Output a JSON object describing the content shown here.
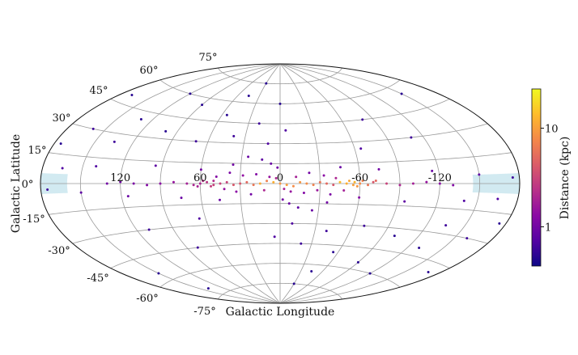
{
  "chart_data": {
    "type": "scatter",
    "projection": "aitoff",
    "xlabel": "Galactic Longitude",
    "ylabel": "Galactic Latitude",
    "lon_ticks": [
      {
        "value": 120,
        "label": "120"
      },
      {
        "value": 60,
        "label": "60"
      },
      {
        "value": 0,
        "label": "0"
      },
      {
        "value": -60,
        "label": "-60"
      },
      {
        "value": -120,
        "label": "-120"
      }
    ],
    "lat_ticks": [
      {
        "value": 75,
        "label": "75°"
      },
      {
        "value": 60,
        "label": "60°"
      },
      {
        "value": 45,
        "label": "45°"
      },
      {
        "value": 30,
        "label": "30°"
      },
      {
        "value": 15,
        "label": "15°"
      },
      {
        "value": 0,
        "label": "0°"
      },
      {
        "value": -15,
        "label": "-15°"
      },
      {
        "value": -30,
        "label": "-30°"
      },
      {
        "value": -45,
        "label": "-45°"
      },
      {
        "value": -60,
        "label": "-60°"
      },
      {
        "value": -75,
        "label": "-75°"
      }
    ],
    "grid": true,
    "colorbar": {
      "label": "Distance (kpc)",
      "scale": "log",
      "colormap": "plasma",
      "range": [
        0.4,
        25
      ],
      "ticks": [
        {
          "value": 1,
          "label": "1"
        },
        {
          "value": 10,
          "label": "10"
        }
      ]
    },
    "shaded_regions": [
      {
        "lon_range": [
          160,
          180
        ],
        "lat_range": [
          -5,
          5
        ],
        "color": "#add8e6"
      },
      {
        "lon_range": [
          -180,
          -145
        ],
        "lat_range": [
          -5,
          5
        ],
        "color": "#add8e6"
      }
    ],
    "series": [
      {
        "values": [
          [
            0,
            0,
            9
          ],
          [
            5,
            1,
            12
          ],
          [
            -5,
            -1,
            10
          ],
          [
            10,
            2,
            7
          ],
          [
            -10,
            -2,
            8
          ],
          [
            15,
            0,
            11
          ],
          [
            -15,
            1,
            9
          ],
          [
            20,
            -1,
            6
          ],
          [
            -20,
            0,
            8
          ],
          [
            25,
            1,
            5
          ],
          [
            -25,
            -1,
            7
          ],
          [
            30,
            0,
            4
          ],
          [
            -30,
            1,
            6
          ],
          [
            35,
            -1,
            4
          ],
          [
            -35,
            0,
            5
          ],
          [
            40,
            1,
            3
          ],
          [
            -40,
            -1,
            4
          ],
          [
            45,
            0,
            3
          ],
          [
            -45,
            1,
            14
          ],
          [
            50,
            -1,
            3
          ],
          [
            -50,
            0,
            12
          ],
          [
            -55,
            -1,
            10
          ],
          [
            -60,
            0,
            8
          ],
          [
            55,
            1,
            2.5
          ],
          [
            60,
            0,
            2
          ],
          [
            65,
            -1,
            2
          ],
          [
            70,
            0,
            1.8
          ],
          [
            80,
            1,
            1.5
          ],
          [
            90,
            0,
            1.3
          ],
          [
            100,
            -1,
            1.2
          ],
          [
            110,
            0,
            1.1
          ],
          [
            120,
            1,
            1
          ],
          [
            130,
            0,
            1
          ],
          [
            -70,
            1,
            4
          ],
          [
            -80,
            0,
            3
          ],
          [
            -90,
            -1,
            2
          ],
          [
            -100,
            0,
            1.8
          ],
          [
            -110,
            1,
            1.5
          ],
          [
            -120,
            0,
            1.3
          ],
          [
            -130,
            -1,
            1.2
          ],
          [
            3,
            4,
            2
          ],
          [
            -3,
            -4,
            2
          ],
          [
            8,
            5,
            1.5
          ],
          [
            -8,
            -6,
            1.5
          ],
          [
            12,
            -5,
            2
          ],
          [
            -12,
            5,
            1.8
          ],
          [
            18,
            7,
            1.2
          ],
          [
            -18,
            -7,
            1.2
          ],
          [
            22,
            -8,
            1
          ],
          [
            -22,
            8,
            1
          ],
          [
            28,
            6,
            1.4
          ],
          [
            -28,
            -5,
            1.6
          ],
          [
            33,
            -6,
            1.3
          ],
          [
            -33,
            6,
            1.3
          ],
          [
            38,
            8,
            1.1
          ],
          [
            -38,
            -8,
            1.1
          ],
          [
            42,
            -4,
            1.5
          ],
          [
            -42,
            4,
            2
          ],
          [
            48,
            5,
            1.2
          ],
          [
            -48,
            -5,
            1.8
          ],
          [
            2,
            12,
            1
          ],
          [
            -2,
            -12,
            1
          ],
          [
            7,
            15,
            0.9
          ],
          [
            -7,
            -15,
            0.9
          ],
          [
            14,
            18,
            0.8
          ],
          [
            -14,
            -18,
            0.8
          ],
          [
            25,
            20,
            0.9
          ],
          [
            -25,
            -20,
            0.9
          ],
          [
            36,
            14,
            1
          ],
          [
            -36,
            -14,
            1
          ],
          [
            46,
            -12,
            0.9
          ],
          [
            -46,
            12,
            0.9
          ],
          [
            60,
            10,
            1
          ],
          [
            -60,
            -10,
            1.2
          ],
          [
            75,
            -10,
            0.9
          ],
          [
            -75,
            10,
            1
          ],
          [
            95,
            12,
            0.8
          ],
          [
            -95,
            -12,
            0.8
          ],
          [
            115,
            -8,
            0.9
          ],
          [
            -115,
            8,
            0.9
          ],
          [
            140,
            10,
            0.7
          ],
          [
            -140,
            -10,
            0.7
          ],
          [
            150,
            -5,
            0.8
          ],
          [
            -150,
            5,
            0.8
          ],
          [
            165,
            8,
            0.7
          ],
          [
            -165,
            -8,
            0.7
          ],
          [
            175,
            -3,
            0.6
          ],
          [
            -175,
            3,
            0.6
          ],
          [
            135,
            25,
            0.6
          ],
          [
            -135,
            -25,
            0.6
          ],
          [
            10,
            30,
            0.7
          ],
          [
            -10,
            -30,
            0.7
          ],
          [
            40,
            35,
            0.6
          ],
          [
            -40,
            -35,
            0.6
          ],
          [
            70,
            30,
            0.6
          ],
          [
            -70,
            -30,
            0.6
          ],
          [
            100,
            35,
            0.5
          ],
          [
            -100,
            -35,
            0.5
          ],
          [
            130,
            40,
            0.5
          ],
          [
            -130,
            -40,
            0.5
          ],
          [
            20,
            45,
            0.6
          ],
          [
            -20,
            -45,
            0.6
          ],
          [
            55,
            50,
            0.5
          ],
          [
            -55,
            -50,
            0.5
          ],
          [
            90,
            55,
            0.5
          ],
          [
            -90,
            -55,
            0.5
          ],
          [
            0,
            60,
            0.5
          ],
          [
            45,
            65,
            0.5
          ],
          [
            -45,
            -65,
            0.5
          ],
          [
            120,
            60,
            0.5
          ],
          [
            -120,
            -60,
            0.5
          ],
          [
            30,
            75,
            0.5
          ],
          [
            -30,
            -75,
            0.5
          ],
          [
            160,
            30,
            0.6
          ],
          [
            -160,
            -30,
            0.6
          ],
          [
            170,
            50,
            0.5
          ],
          [
            -170,
            -50,
            0.5
          ],
          [
            80,
            -45,
            0.6
          ],
          [
            -80,
            45,
            0.6
          ],
          [
            150,
            -55,
            0.5
          ],
          [
            -150,
            55,
            0.5
          ],
          [
            5,
            -40,
            0.7
          ],
          [
            -5,
            40,
            0.7
          ],
          [
            65,
            -25,
            0.7
          ],
          [
            -65,
            25,
            0.7
          ],
          [
            110,
            -30,
            0.6
          ],
          [
            -110,
            30,
            0.6
          ],
          [
            175,
            20,
            0.5
          ],
          [
            -175,
            -20,
            0.5
          ],
          [
            140,
            -70,
            0.5
          ],
          [
            50,
            2,
            2.2
          ],
          [
            -52,
            2,
            11
          ],
          [
            -58,
            -2,
            9
          ],
          [
            -56,
            1,
            13
          ],
          [
            52,
            -2,
            2.8
          ],
          [
            -62,
            2,
            7
          ],
          [
            58,
            2,
            2.3
          ],
          [
            -66,
            -1,
            6
          ],
          [
            62,
            -2,
            1.9
          ],
          [
            -72,
            2,
            5
          ]
        ]
      }
    ]
  }
}
